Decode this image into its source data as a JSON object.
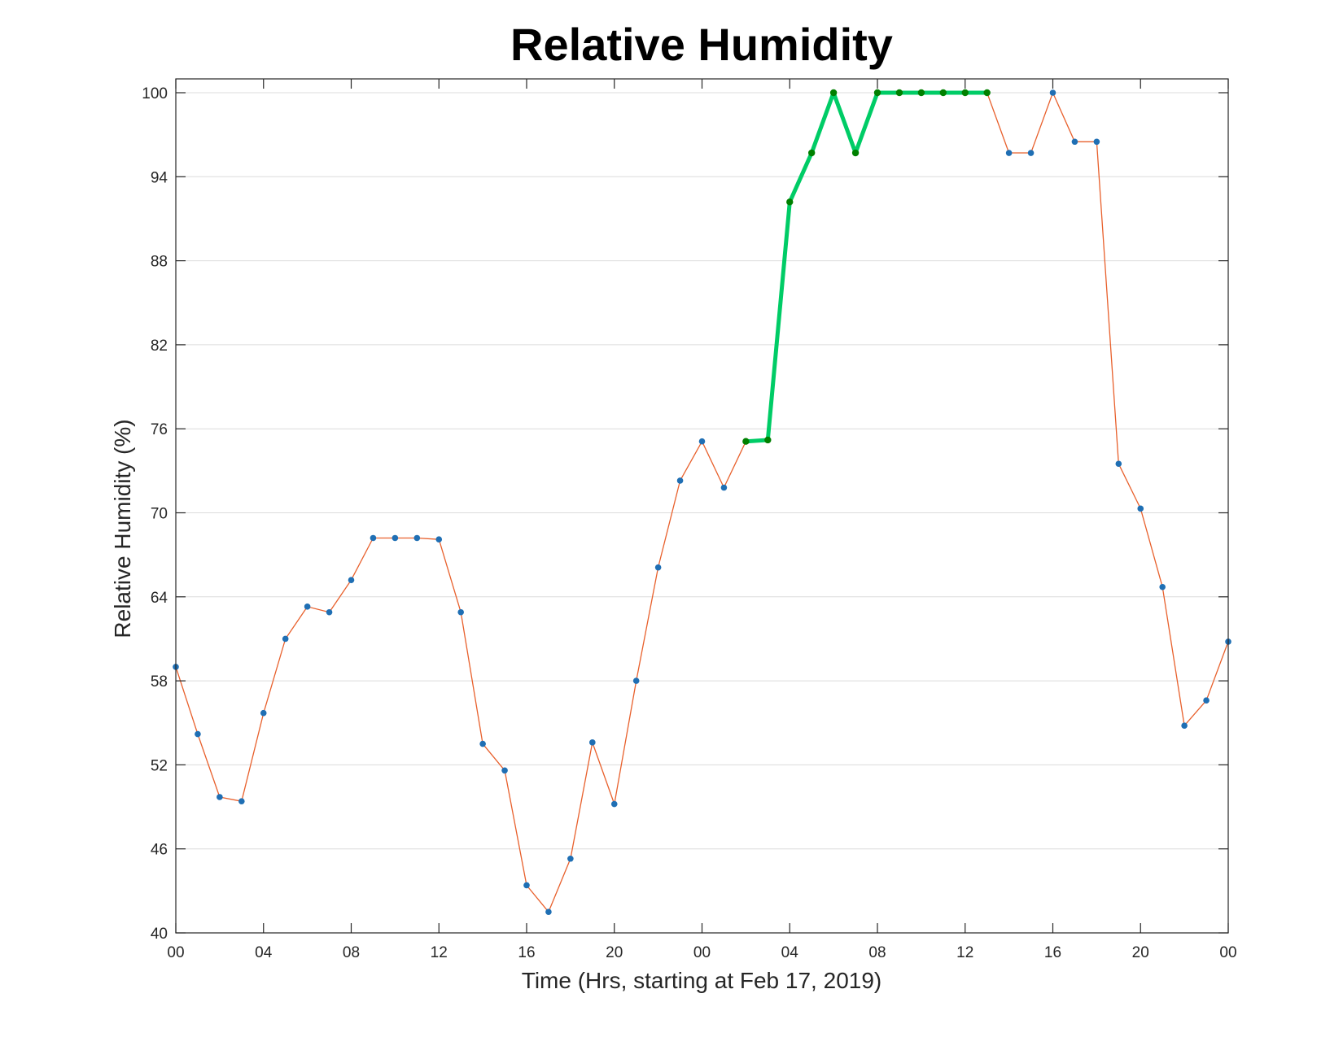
{
  "chart_data": {
    "type": "line",
    "title": "Relative Humidity",
    "xlabel": "Time (Hrs, starting at Feb 17, 2019)",
    "ylabel": "Relative Humidity (%)",
    "xlim": [
      0,
      48
    ],
    "ylim": [
      40,
      100
    ],
    "x_ticks": [
      0,
      4,
      8,
      12,
      16,
      20,
      24,
      28,
      32,
      36,
      40,
      44,
      48
    ],
    "x_tick_labels": [
      "00",
      "04",
      "08",
      "12",
      "16",
      "20",
      "00",
      "04",
      "08",
      "12",
      "16",
      "20",
      "00"
    ],
    "y_ticks": [
      40,
      46,
      52,
      58,
      64,
      70,
      76,
      82,
      88,
      94,
      100
    ],
    "y_tick_labels": [
      "40",
      "46",
      "52",
      "58",
      "64",
      "70",
      "76",
      "82",
      "88",
      "94",
      "100"
    ],
    "grid": "horizontal",
    "legend": "none",
    "series": [
      {
        "color": "#e8602c",
        "marker_color": "#1f6fb4",
        "x": [
          0,
          1,
          2,
          3,
          4,
          5,
          6,
          7,
          8,
          9,
          10,
          11,
          12,
          13,
          14,
          15,
          16,
          17,
          18,
          19,
          20,
          21,
          22,
          23,
          24,
          25,
          26,
          27,
          28,
          29,
          30,
          31,
          32,
          33,
          34,
          35,
          36,
          37,
          38,
          39,
          40,
          41,
          42,
          43,
          44,
          45,
          46,
          47,
          48
        ],
        "values": [
          59.0,
          54.2,
          49.7,
          49.4,
          55.7,
          61.0,
          63.3,
          62.9,
          65.2,
          68.2,
          68.2,
          68.2,
          68.1,
          62.9,
          53.5,
          51.6,
          43.4,
          41.5,
          45.3,
          53.6,
          49.2,
          58.0,
          66.1,
          72.3,
          75.1,
          71.8,
          75.1,
          75.2,
          92.2,
          95.7,
          100.0,
          95.7,
          100.0,
          100.0,
          100.0,
          100.0,
          100.0,
          100.0,
          95.7,
          95.7,
          100.0,
          96.5,
          96.5,
          73.5,
          70.3,
          64.7,
          54.8,
          56.6,
          60.8
        ]
      },
      {
        "color": "#00cc66",
        "marker_color": "#008000",
        "x": [
          26,
          27,
          28,
          29,
          30,
          31,
          32,
          33,
          34,
          35,
          36,
          37
        ],
        "values": [
          75.1,
          75.2,
          92.2,
          95.7,
          100.0,
          95.7,
          100.0,
          100.0,
          100.0,
          100.0,
          100.0,
          100.0
        ]
      }
    ]
  }
}
